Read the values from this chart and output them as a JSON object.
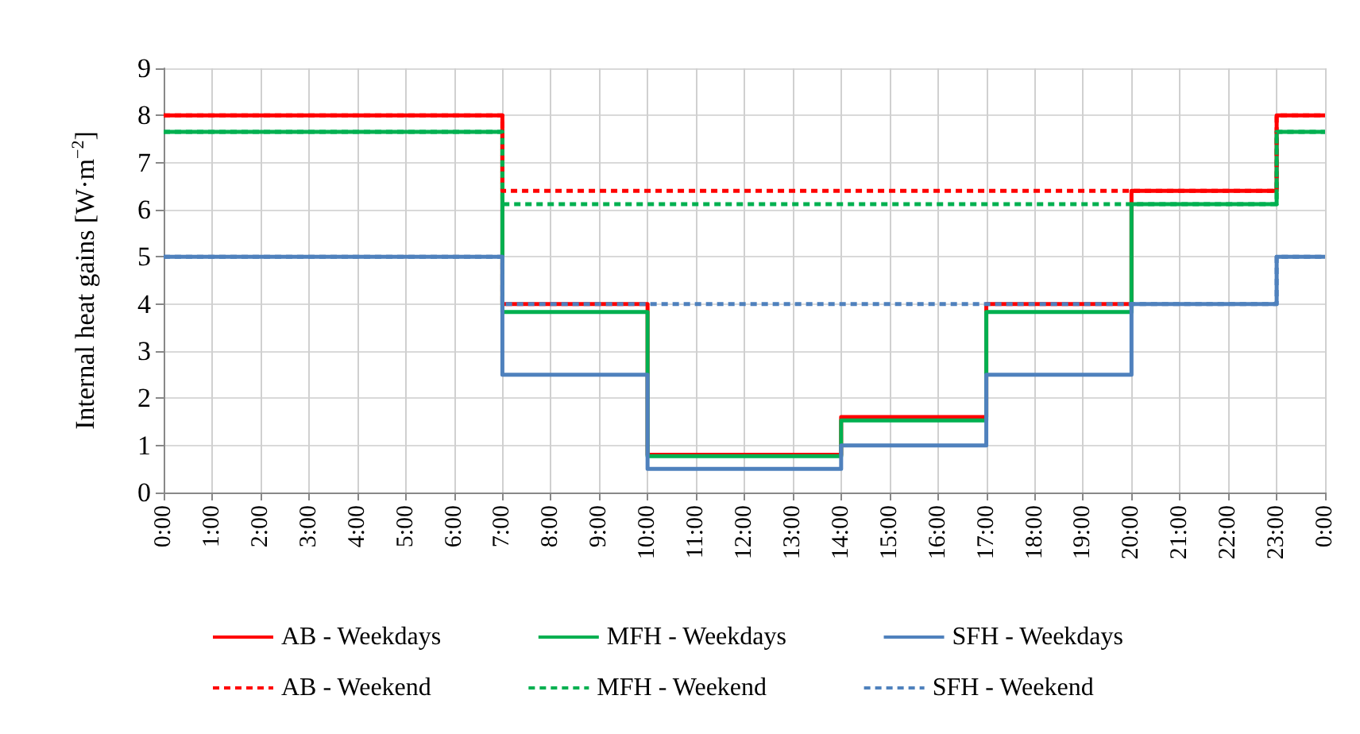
{
  "chart_data": {
    "type": "step",
    "ylabel": "Internal heat gains [W·m$^{−2}$]",
    "categories": [
      "0:00",
      "1:00",
      "2:00",
      "3:00",
      "4:00",
      "5:00",
      "6:00",
      "7:00",
      "8:00",
      "9:00",
      "10:00",
      "11:00",
      "12:00",
      "13:00",
      "14:00",
      "15:00",
      "16:00",
      "17:00",
      "18:00",
      "19:00",
      "20:00",
      "21:00",
      "22:00",
      "23:00",
      "0:00"
    ],
    "ylim": [
      0,
      9
    ],
    "yticks": [
      0,
      1,
      2,
      3,
      4,
      5,
      6,
      7,
      8,
      9
    ],
    "grid": true,
    "legend": "bottom",
    "marker": "none",
    "series": [
      {
        "name": "AB - Weekdays",
        "color": "#ff0000",
        "line_style": "solid",
        "values": [
          8,
          8,
          8,
          8,
          8,
          8,
          8,
          4,
          4,
          4,
          0.8,
          0.8,
          0.8,
          0.8,
          1.6,
          1.6,
          1.6,
          4,
          4,
          4,
          6.4,
          6.4,
          6.4,
          8,
          8
        ]
      },
      {
        "name": "MFH - Weekdays",
        "color": "#00b050",
        "line_style": "solid",
        "values": [
          7.65,
          7.65,
          7.65,
          7.65,
          7.65,
          7.65,
          7.65,
          3.83,
          3.83,
          3.83,
          0.77,
          0.77,
          0.77,
          0.77,
          1.53,
          1.53,
          1.53,
          3.83,
          3.83,
          3.83,
          6.12,
          6.12,
          6.12,
          7.65,
          7.65
        ]
      },
      {
        "name": "SFH - Weekdays",
        "color": "#4f81bd",
        "line_style": "solid",
        "values": [
          5,
          5,
          5,
          5,
          5,
          5,
          5,
          2.5,
          2.5,
          2.5,
          0.5,
          0.5,
          0.5,
          0.5,
          1,
          1,
          1,
          2.5,
          2.5,
          2.5,
          4,
          4,
          4,
          5,
          5
        ]
      },
      {
        "name": "AB - Weekend",
        "color": "#ff0000",
        "line_style": "dashed",
        "values": [
          8,
          8,
          8,
          8,
          8,
          8,
          8,
          6.4,
          6.4,
          6.4,
          6.4,
          6.4,
          6.4,
          6.4,
          6.4,
          6.4,
          6.4,
          6.4,
          6.4,
          6.4,
          6.4,
          6.4,
          6.4,
          8,
          8
        ]
      },
      {
        "name": "MFH - Weekend",
        "color": "#00b050",
        "line_style": "dashed",
        "values": [
          7.65,
          7.65,
          7.65,
          7.65,
          7.65,
          7.65,
          7.65,
          6.12,
          6.12,
          6.12,
          6.12,
          6.12,
          6.12,
          6.12,
          6.12,
          6.12,
          6.12,
          6.12,
          6.12,
          6.12,
          6.12,
          6.12,
          6.12,
          7.65,
          7.65
        ]
      },
      {
        "name": "SFH - Weekend",
        "color": "#4f81bd",
        "line_style": "dashed",
        "values": [
          5,
          5,
          5,
          5,
          5,
          5,
          5,
          4,
          4,
          4,
          4,
          4,
          4,
          4,
          4,
          4,
          4,
          4,
          4,
          4,
          4,
          4,
          4,
          5,
          5
        ]
      }
    ]
  }
}
